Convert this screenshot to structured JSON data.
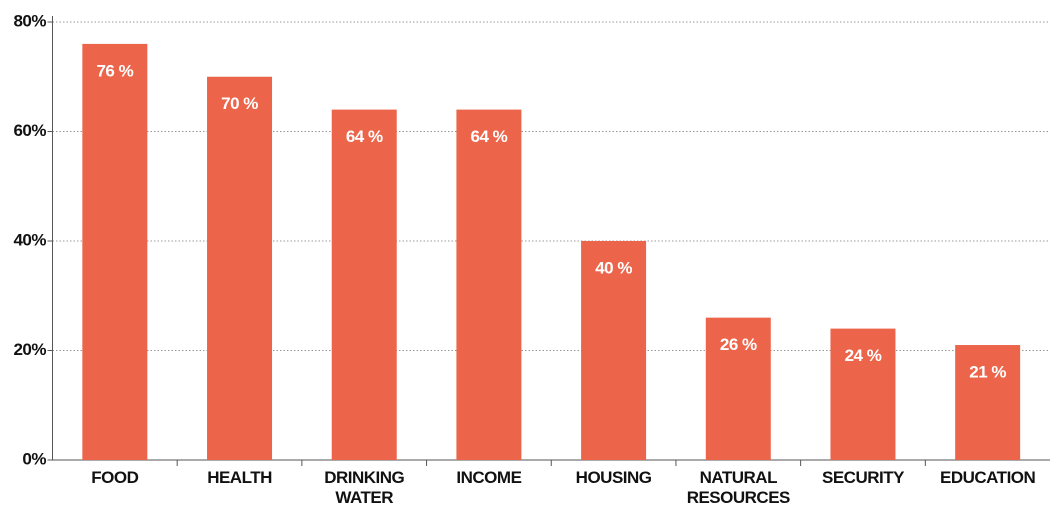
{
  "chart_data": {
    "type": "bar",
    "categories": [
      "FOOD",
      "HEALTH",
      "DRINKING WATER",
      "INCOME",
      "HOUSING",
      "NATURAL RESOURCES",
      "SECURITY",
      "EDUCATION"
    ],
    "values": [
      76,
      70,
      64,
      64,
      40,
      26,
      24,
      21
    ],
    "value_labels": [
      "76 %",
      "70 %",
      "64 %",
      "64 %",
      "40 %",
      "26 %",
      "24 %",
      "21 %"
    ],
    "color": "#ec654b",
    "ylim": [
      0,
      80
    ],
    "yticks": [
      {
        "value": 0,
        "label": "0%"
      },
      {
        "value": 20,
        "label": "20%"
      },
      {
        "value": 40,
        "label": "40%"
      },
      {
        "value": 60,
        "label": "60%"
      },
      {
        "value": 80,
        "label": "80%"
      }
    ],
    "grid": true
  }
}
